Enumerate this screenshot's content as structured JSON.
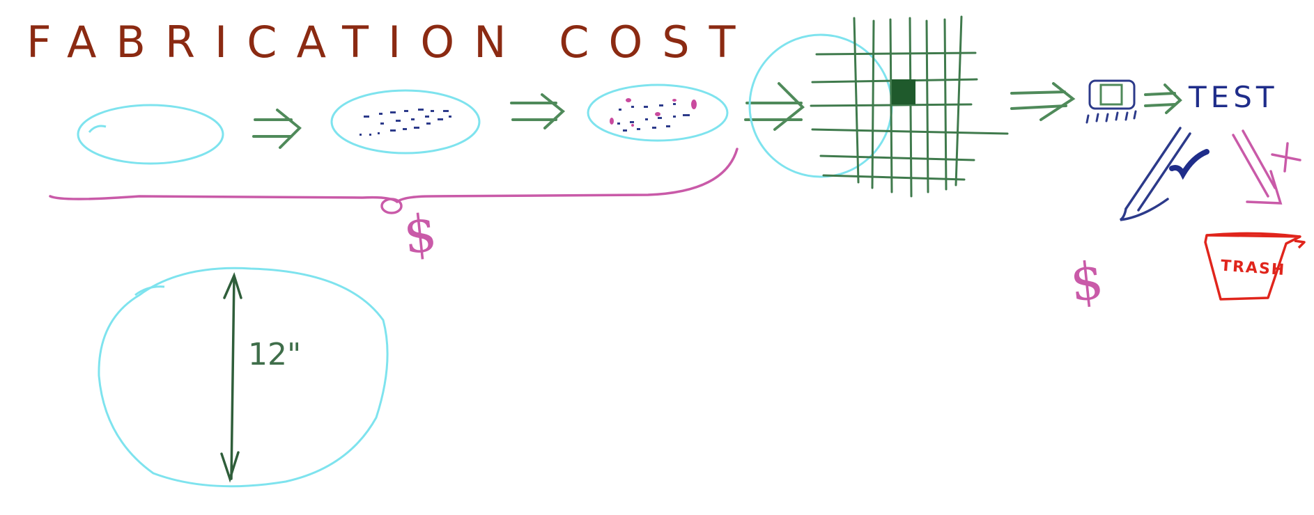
{
  "title": "FABRICATION COST",
  "wafer_label": "12\"",
  "cost_label_left": "$",
  "test_label": "TEST",
  "cost_label_right": "$",
  "trash_label": "TRASH",
  "colors": {
    "title": "#8b2a12",
    "wafer": "#7ee3ee",
    "arrow_green": "#4f8a5a",
    "grid_green": "#3f7a4c",
    "bracket_magenta": "#c95aa8",
    "test_blue": "#1f2d8a",
    "trash_red": "#e0251c"
  },
  "icons": [
    "wafer-icon",
    "double-arrow-icon",
    "chip-icon",
    "check-icon",
    "trash-bin-icon"
  ]
}
